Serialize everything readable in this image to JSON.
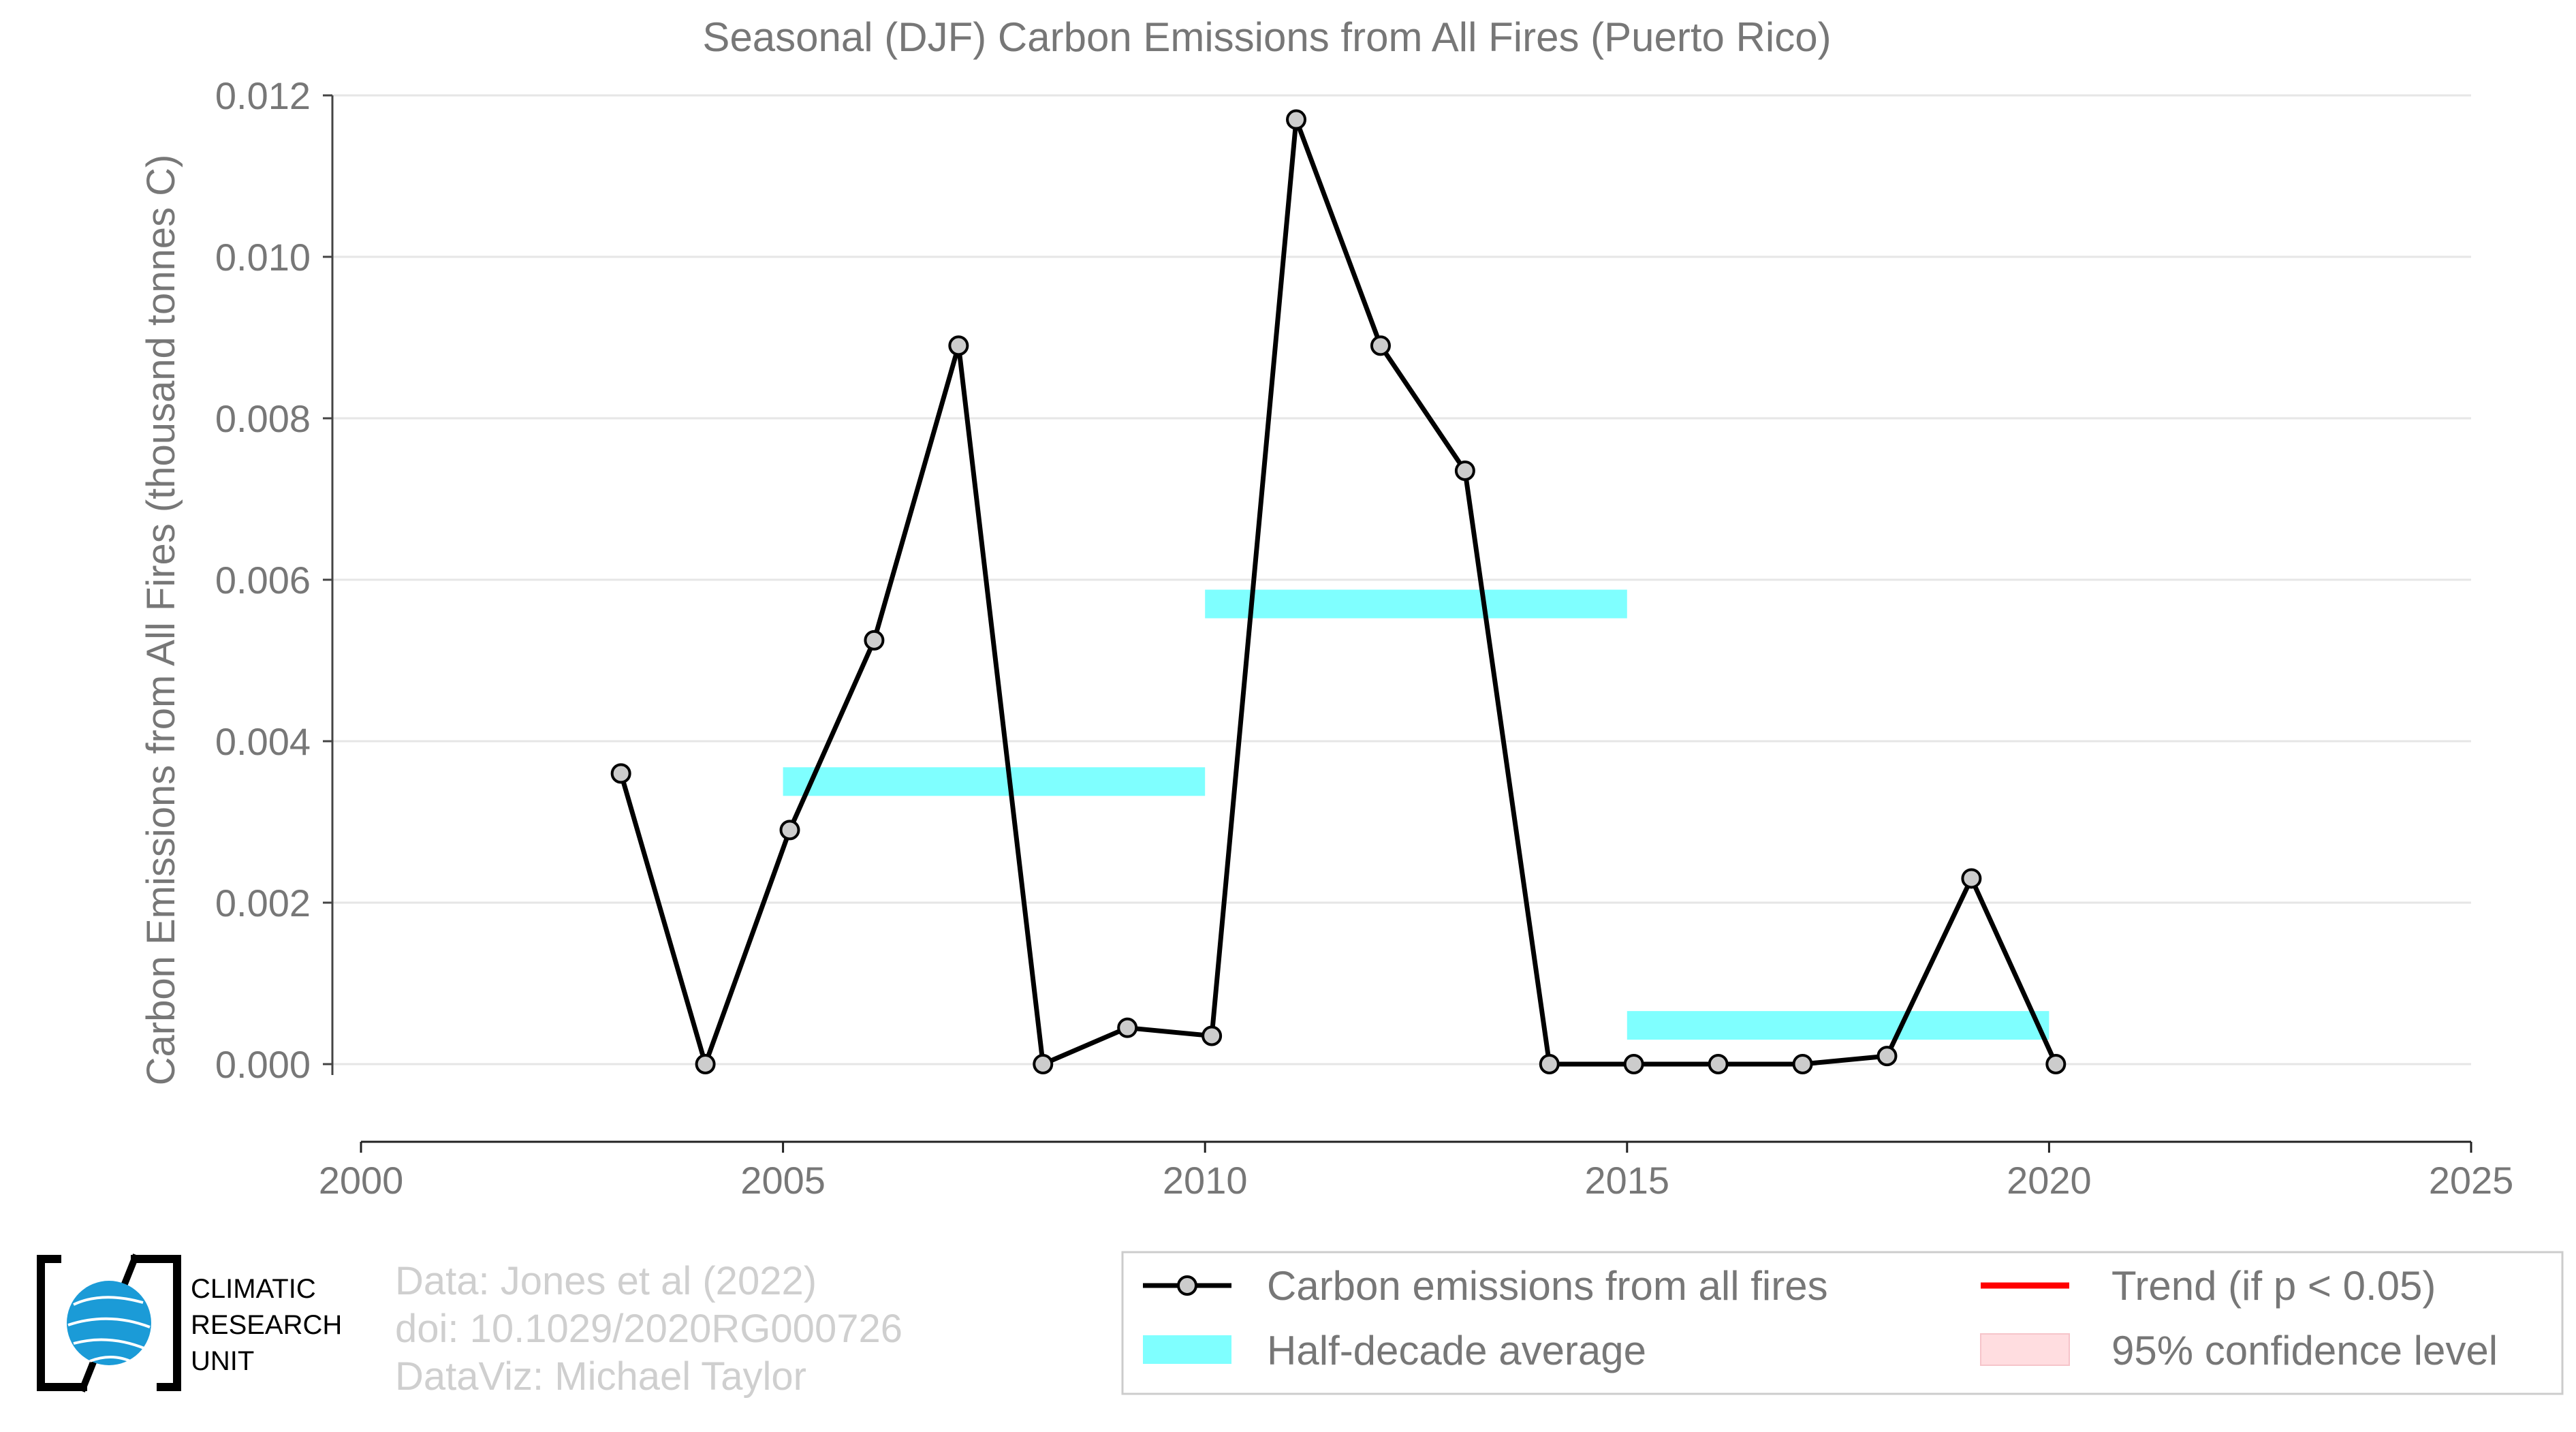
{
  "chart_data": {
    "type": "line",
    "title": "Seasonal (DJF) Carbon Emissions from All Fires (Puerto Rico)",
    "xlabel": "",
    "ylabel": "Carbon Emissions from All Fires (thousand tonnes C)",
    "xlim": [
      2000,
      2025
    ],
    "ylim": [
      -0.0009,
      0.012
    ],
    "x_ticks": [
      "2000",
      "2005",
      "2010",
      "2015",
      "2020",
      "2025"
    ],
    "y_ticks": [
      "0.000",
      "0.002",
      "0.004",
      "0.006",
      "0.008",
      "0.010",
      "0.012"
    ],
    "grid": "horizontal",
    "series": [
      {
        "name": "Carbon emissions from all fires",
        "color": "#000000",
        "marker_fill": "#cccccc",
        "x": [
          2003,
          2004,
          2005,
          2006,
          2007,
          2008,
          2009,
          2010,
          2011,
          2012,
          2013,
          2014,
          2015,
          2016,
          2017,
          2018,
          2019,
          2020
        ],
        "values": [
          0.0036,
          0.0,
          0.0029,
          0.00525,
          0.0089,
          0.0,
          0.00045,
          0.00035,
          0.0117,
          0.0089,
          0.00735,
          0.0,
          0.0,
          0.0,
          0.0,
          0.0001,
          0.0023,
          0.0
        ]
      }
    ],
    "half_decade_averages": [
      {
        "x_start": 2005,
        "x_end": 2010,
        "value": 0.0035
      },
      {
        "x_start": 2010,
        "x_end": 2015,
        "value": 0.0057
      },
      {
        "x_start": 2015,
        "x_end": 2020,
        "value": 0.00048
      }
    ],
    "legend": {
      "placement": "bottom-right",
      "entries": [
        {
          "label": "Carbon emissions from all fires",
          "kind": "line-marker",
          "color": "#000000"
        },
        {
          "label": "Trend (if p < 0.05)",
          "kind": "line",
          "color": "#ff0000"
        },
        {
          "label": "Half-decade average",
          "kind": "band",
          "color": "#7fffff"
        },
        {
          "label": "95% confidence level",
          "kind": "patch",
          "color": "#ffdde0"
        }
      ]
    }
  },
  "credits": {
    "line1": "Data: Jones et al (2022)",
    "line2": "doi: 10.1029/2020RG000726",
    "line3": "DataViz: Michael Taylor"
  },
  "logo": {
    "line1": "CLIMATIC",
    "line2": "RESEARCH",
    "line3": "UNIT",
    "globe_color": "#1b9bd7"
  }
}
